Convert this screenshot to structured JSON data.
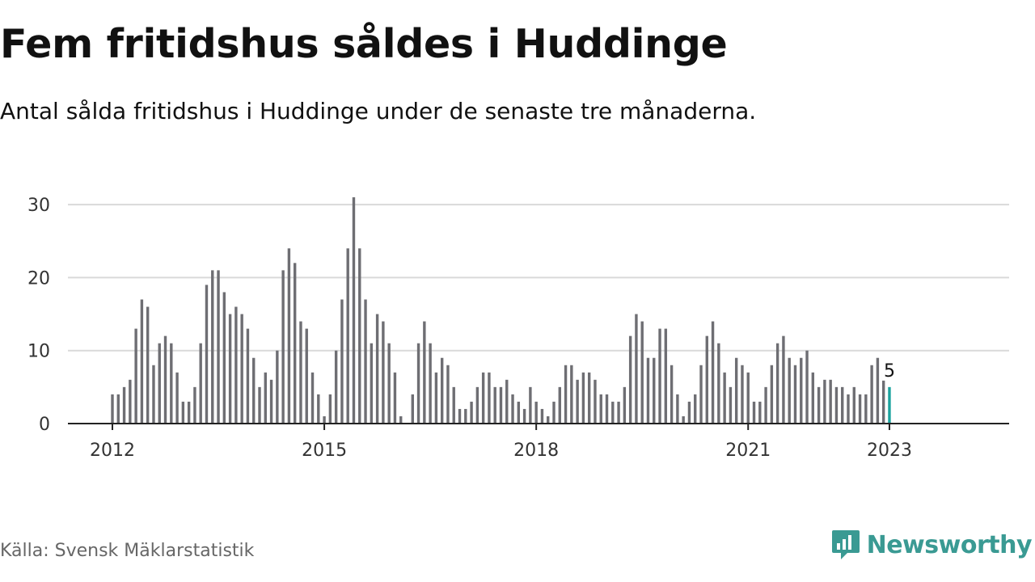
{
  "header": {
    "title": "Fem fritidshus såldes i Huddinge",
    "subtitle": "Antal sålda fritidshus i Huddinge under de senaste tre månaderna."
  },
  "footer": {
    "source": "Källa: Svensk Mäklarstatistik",
    "brand": "Newsworthy",
    "brand_icon": "newsworthy-logo-icon"
  },
  "colors": {
    "bar": "#6e6e73",
    "highlight": "#1aa39e",
    "grid": "#d9d9d9",
    "axis": "#222222",
    "brand": "#3a9a93"
  },
  "chart_data": {
    "type": "bar",
    "title": "Fem fritidshus såldes i Huddinge",
    "subtitle": "Antal sålda fritidshus i Huddinge under de senaste tre månaderna.",
    "start": "2012-01",
    "end": "2023-01",
    "frequency": "monthly",
    "values": [
      4,
      4,
      5,
      6,
      13,
      17,
      16,
      8,
      11,
      12,
      11,
      7,
      3,
      3,
      5,
      11,
      19,
      21,
      21,
      18,
      15,
      16,
      15,
      13,
      9,
      5,
      7,
      6,
      10,
      21,
      24,
      22,
      14,
      13,
      7,
      4,
      1,
      4,
      10,
      17,
      24,
      31,
      24,
      17,
      11,
      15,
      14,
      11,
      7,
      1,
      0,
      4,
      11,
      14,
      11,
      7,
      9,
      8,
      5,
      2,
      2,
      3,
      5,
      7,
      7,
      5,
      5,
      6,
      4,
      3,
      2,
      5,
      3,
      2,
      1,
      3,
      5,
      8,
      8,
      6,
      7,
      7,
      6,
      4,
      4,
      3,
      3,
      5,
      12,
      15,
      14,
      9,
      9,
      13,
      13,
      8,
      4,
      1,
      3,
      4,
      8,
      12,
      14,
      11,
      7,
      5,
      9,
      8,
      7,
      3,
      3,
      5,
      8,
      11,
      12,
      9,
      8,
      9,
      10,
      7,
      5,
      6,
      6,
      5,
      5,
      4,
      5,
      4,
      4,
      8,
      9,
      7,
      5
    ],
    "highlight_last": true,
    "data_labels": [
      {
        "date": "2023-01",
        "text": "5"
      }
    ],
    "yticks": [
      0,
      10,
      20,
      30
    ],
    "xticks": [
      "2012",
      "2015",
      "2018",
      "2021",
      "2023"
    ],
    "ylim": [
      0,
      31
    ],
    "grid": true,
    "xlabel": "",
    "ylabel": ""
  }
}
